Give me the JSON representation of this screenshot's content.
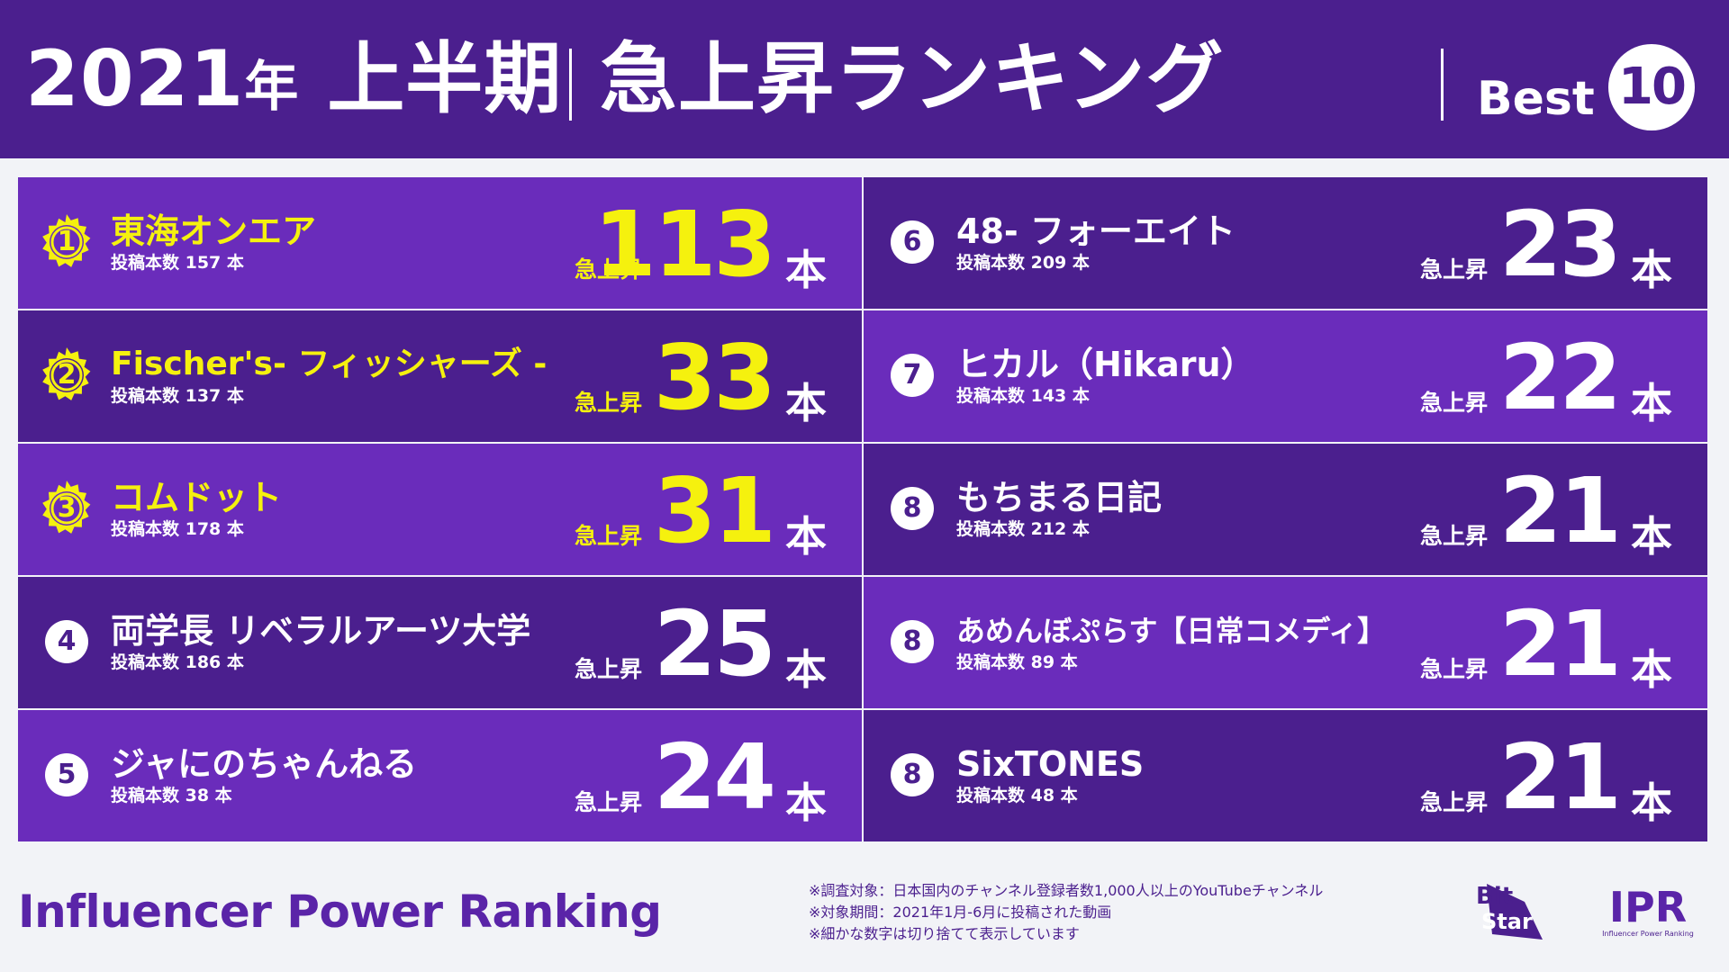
{
  "header": {
    "title_year": "2021",
    "title_nen": "年",
    "title_period": "上半期",
    "title_ranking": "急上昇ランキング",
    "best_label": "Best",
    "best_count": "10"
  },
  "rankings": [
    {
      "rank": "1",
      "name": "東海オンエア",
      "posts": "投稿本数 157 本",
      "rise_label": "急上昇",
      "count": "113",
      "unit": "本"
    },
    {
      "rank": "2",
      "name": "Fischer's- フィッシャーズ -",
      "posts": "投稿本数 137 本",
      "rise_label": "急上昇",
      "count": "33",
      "unit": "本"
    },
    {
      "rank": "3",
      "name": "コムドット",
      "posts": "投稿本数 178 本",
      "rise_label": "急上昇",
      "count": "31",
      "unit": "本"
    },
    {
      "rank": "4",
      "name": "両学長 リベラルアーツ大学",
      "posts": "投稿本数 186 本",
      "rise_label": "急上昇",
      "count": "25",
      "unit": "本"
    },
    {
      "rank": "5",
      "name": "ジャにのちゃんねる",
      "posts": "投稿本数 38 本",
      "rise_label": "急上昇",
      "count": "24",
      "unit": "本"
    },
    {
      "rank": "6",
      "name": "48- フォーエイト",
      "posts": "投稿本数 209 本",
      "rise_label": "急上昇",
      "count": "23",
      "unit": "本"
    },
    {
      "rank": "7",
      "name": "ヒカル（Hikaru）",
      "posts": "投稿本数 143 本",
      "rise_label": "急上昇",
      "count": "22",
      "unit": "本"
    },
    {
      "rank": "8",
      "name": "もちまる日記",
      "posts": "投稿本数 212 本",
      "rise_label": "急上昇",
      "count": "21",
      "unit": "本"
    },
    {
      "rank": "8",
      "name": "あめんぼぷらす【日常コメディ】",
      "posts": "投稿本数 89 本",
      "rise_label": "急上昇",
      "count": "21",
      "unit": "本"
    },
    {
      "rank": "8",
      "name": "SixTONES",
      "posts": "投稿本数 48 本",
      "rise_label": "急上昇",
      "count": "21",
      "unit": "本"
    }
  ],
  "footer": {
    "title": "Influencer Power Ranking",
    "notes": [
      "※調査対象：日本国内のチャンネル登録者数1,000人以上のYouTubeチャンネル",
      "※対象期間：2021年1月-6月に投稿された動画",
      "※細かな数字は切り捨てて表示しています"
    ],
    "logo_bitstar": {
      "line1": "Bit",
      "line2": "Star"
    },
    "logo_ipr": {
      "mark": "IPR",
      "sub": "Influencer Power Ranking"
    }
  },
  "colors": {
    "header": "#4b1f8e",
    "row_light": "#6a2cbb",
    "row_dark": "#4b1f8e",
    "top3": "#f5f10e",
    "text": "#ffffff"
  }
}
